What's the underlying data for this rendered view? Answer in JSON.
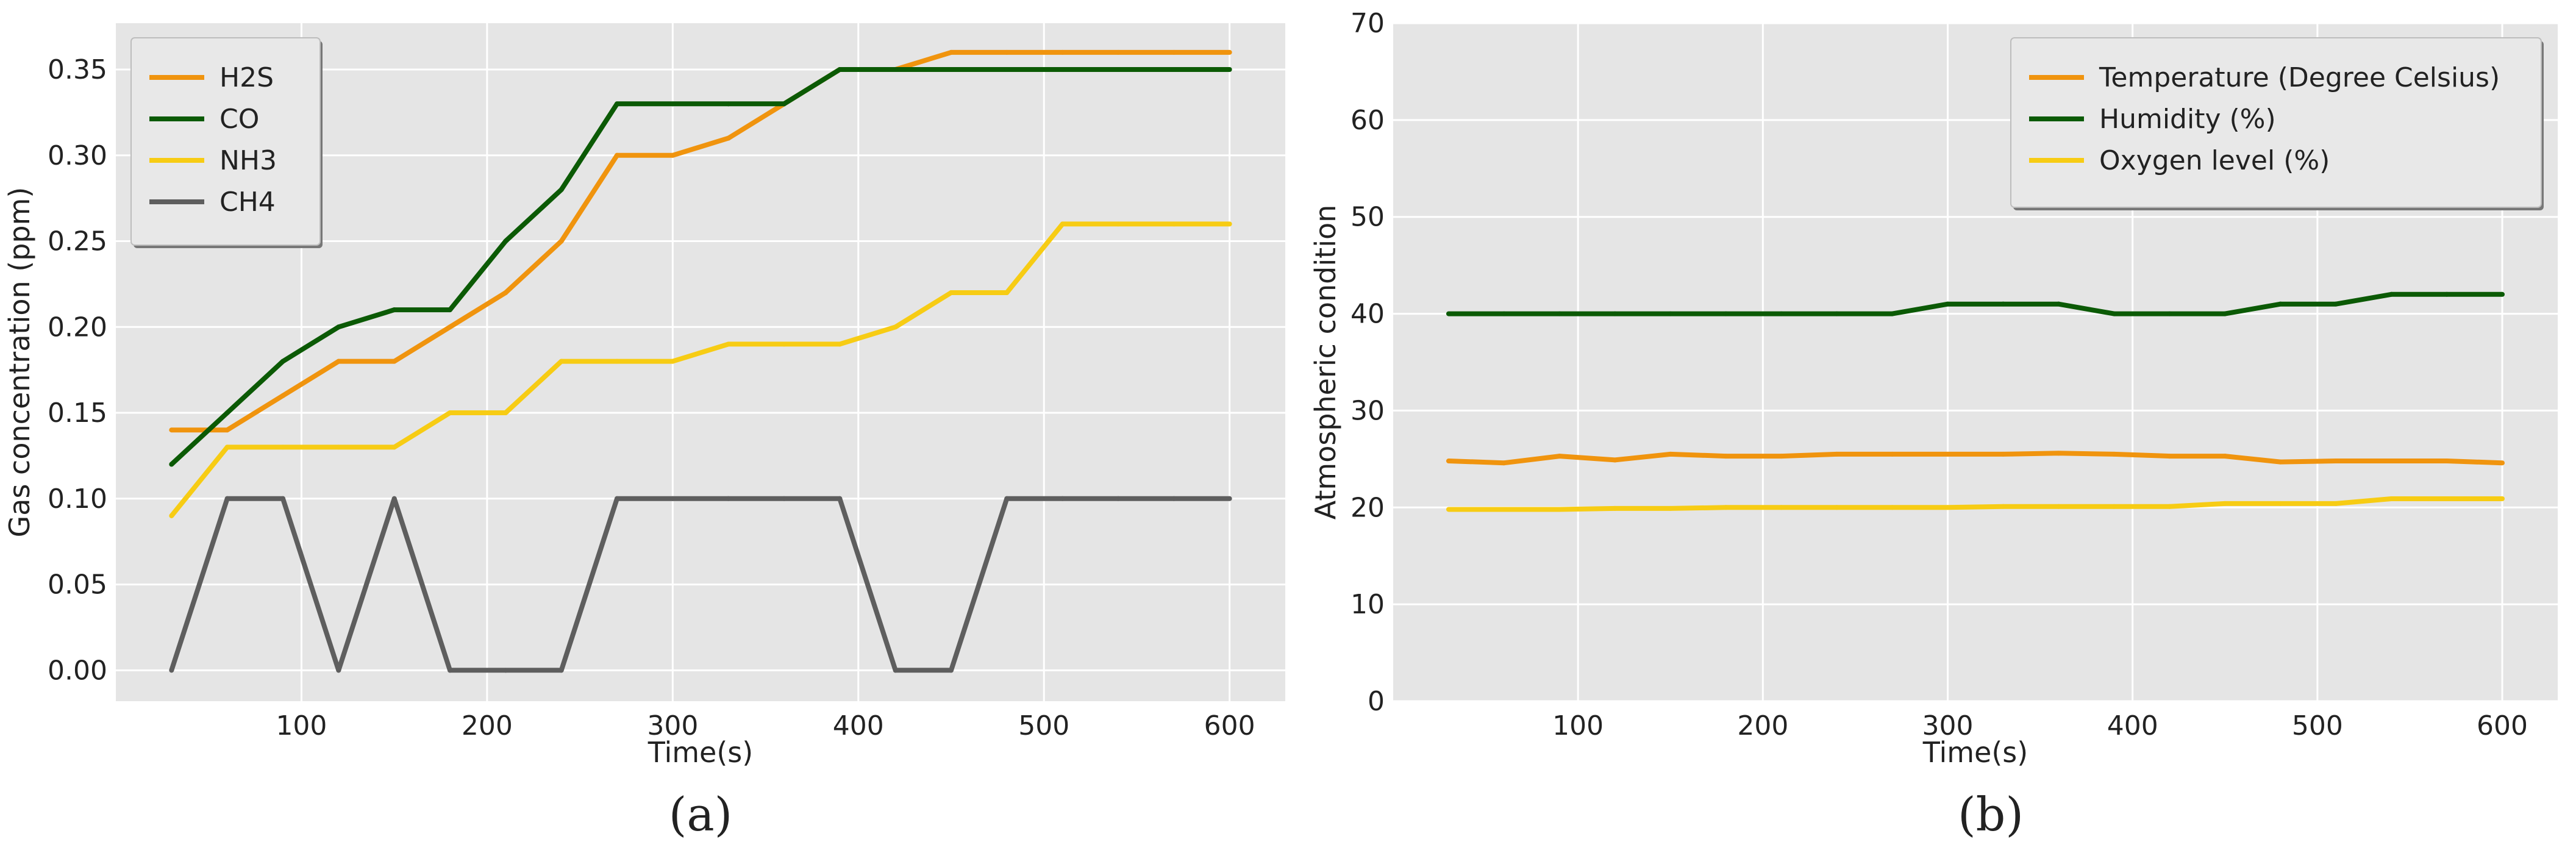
{
  "chart_data": [
    {
      "type": "line",
      "caption": "(a)",
      "xlabel": "Time(s)",
      "ylabel": "Gas concentration (ppm)",
      "xlim": [
        0,
        630
      ],
      "ylim": [
        -0.018,
        0.377
      ],
      "xticks": [
        100,
        200,
        300,
        400,
        500,
        600
      ],
      "xtick_labels": [
        "100",
        "200",
        "300",
        "400",
        "500",
        "600"
      ],
      "yticks": [
        0.0,
        0.05,
        0.1,
        0.15,
        0.2,
        0.25,
        0.3,
        0.35
      ],
      "ytick_labels": [
        "0.00",
        "0.05",
        "0.10",
        "0.15",
        "0.20",
        "0.25",
        "0.30",
        "0.35"
      ],
      "grid": true,
      "legend_position": "top-left",
      "x": [
        30,
        60,
        90,
        120,
        150,
        180,
        210,
        240,
        270,
        300,
        330,
        360,
        390,
        420,
        450,
        480,
        510,
        540,
        570,
        600
      ],
      "series": [
        {
          "name": "H2S",
          "color": "#f0940e",
          "values": [
            0.14,
            0.14,
            0.16,
            0.18,
            0.18,
            0.2,
            0.22,
            0.25,
            0.3,
            0.3,
            0.31,
            0.33,
            0.35,
            0.35,
            0.36,
            0.36,
            0.36,
            0.36,
            0.36,
            0.36
          ]
        },
        {
          "name": "CO",
          "color": "#0b5a05",
          "values": [
            0.12,
            0.15,
            0.18,
            0.2,
            0.21,
            0.21,
            0.25,
            0.28,
            0.33,
            0.33,
            0.33,
            0.33,
            0.35,
            0.35,
            0.35,
            0.35,
            0.35,
            0.35,
            0.35,
            0.35
          ]
        },
        {
          "name": "NH3",
          "color": "#f7cc14",
          "values": [
            0.09,
            0.13,
            0.13,
            0.13,
            0.13,
            0.15,
            0.15,
            0.18,
            0.18,
            0.18,
            0.19,
            0.19,
            0.19,
            0.2,
            0.22,
            0.22,
            0.26,
            0.26,
            0.26,
            0.26
          ]
        },
        {
          "name": "CH4",
          "color": "#5e5e5e",
          "values": [
            0.0,
            0.1,
            0.1,
            0.0,
            0.1,
            0.0,
            0.0,
            0.0,
            0.1,
            0.1,
            0.1,
            0.1,
            0.1,
            0.0,
            0.0,
            0.1,
            0.1,
            0.1,
            0.1,
            0.1
          ]
        }
      ]
    },
    {
      "type": "line",
      "caption": "(b)",
      "xlabel": "Time(s)",
      "ylabel": "Atmospheric condition",
      "xlim": [
        0,
        630
      ],
      "ylim": [
        0,
        70
      ],
      "xticks": [
        100,
        200,
        300,
        400,
        500,
        600
      ],
      "xtick_labels": [
        "100",
        "200",
        "300",
        "400",
        "500",
        "600"
      ],
      "yticks": [
        0,
        10,
        20,
        30,
        40,
        50,
        60,
        70
      ],
      "ytick_labels": [
        "0",
        "10",
        "20",
        "30",
        "40",
        "50",
        "60",
        "70"
      ],
      "grid": true,
      "legend_position": "top-right",
      "x": [
        30,
        60,
        90,
        120,
        150,
        180,
        210,
        240,
        270,
        300,
        330,
        360,
        390,
        420,
        450,
        480,
        510,
        540,
        570,
        600
      ],
      "series": [
        {
          "name": "Temperature (Degree Celsius)",
          "color": "#f0940e",
          "values": [
            24.8,
            24.6,
            25.3,
            24.9,
            25.5,
            25.3,
            25.3,
            25.5,
            25.5,
            25.5,
            25.5,
            25.6,
            25.5,
            25.3,
            25.3,
            24.7,
            24.8,
            24.8,
            24.8,
            24.6
          ]
        },
        {
          "name": "Humidity (%)",
          "color": "#0b5a05",
          "values": [
            40,
            40,
            40,
            40,
            40,
            40,
            40,
            40,
            40,
            41,
            41,
            41,
            40,
            40,
            40,
            41,
            41,
            42,
            42,
            42
          ]
        },
        {
          "name": "Oxygen level (%)",
          "color": "#f7cc14",
          "values": [
            19.8,
            19.8,
            19.8,
            19.9,
            19.9,
            20.0,
            20.0,
            20.0,
            20.0,
            20.0,
            20.1,
            20.1,
            20.1,
            20.1,
            20.4,
            20.4,
            20.4,
            20.9,
            20.9,
            20.9
          ]
        }
      ]
    }
  ]
}
